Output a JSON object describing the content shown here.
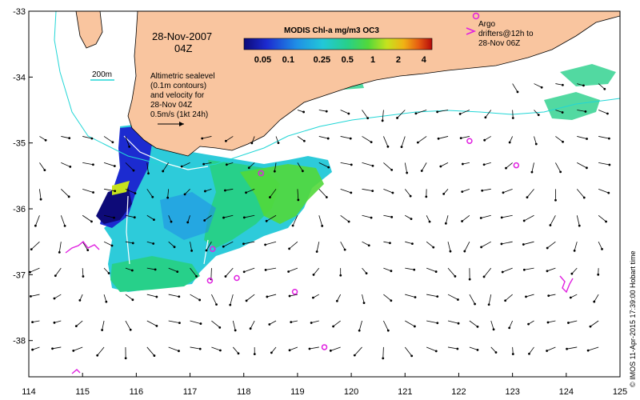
{
  "map": {
    "date_label": "28-Nov-2007",
    "time_label": "04Z",
    "colorbar_title": "MODIS Chl-a mg/m3 OC3",
    "colorbar_ticks": [
      "0.05",
      "0.1",
      "0.25",
      "0.5",
      "1",
      "2",
      "4"
    ],
    "colorbar_tick_values": [
      0.05,
      0.1,
      0.25,
      0.5,
      1,
      2,
      4
    ],
    "colorbar_range": [
      0.03,
      5
    ],
    "colorbar_colors": [
      "#0d0a78",
      "#1c2bd0",
      "#1f8fe6",
      "#22c8d8",
      "#27d08a",
      "#52d83a",
      "#c6e21e",
      "#f0b214",
      "#e65a12",
      "#b40a0a"
    ],
    "isobath_label": "200m",
    "altimetry_note": [
      "Altimetric sealevel",
      "(0.1m contours)",
      "and velocity for",
      "28-Nov 04Z",
      "0.5m/s (1kt 24h)"
    ],
    "argo_legend": [
      "Argo",
      "drifters@12h to",
      "28-Nov 06Z"
    ],
    "credit": "© IMOS 11-Apr-2015 17:39:00 Hobart time",
    "lon_ticks": [
      "114",
      "115",
      "116",
      "117",
      "118",
      "119",
      "120",
      "121",
      "122",
      "123",
      "124",
      "125"
    ],
    "lat_ticks": [
      "-33",
      "-34",
      "-35",
      "-36",
      "-37",
      "-38"
    ],
    "lon_range": [
      114,
      125
    ],
    "lat_range": [
      -38.55,
      -33
    ],
    "colors": {
      "land": "#f9c59f",
      "coastline": "#000000",
      "isobath": "#22d6d6",
      "argo": "#e020e0",
      "vectors": "#000000",
      "sealevel_contour": "#ffffff"
    },
    "argo_floats": [
      {
        "lon": 118.32,
        "lat": -35.46
      },
      {
        "lon": 117.42,
        "lat": -36.61
      },
      {
        "lon": 117.87,
        "lat": -37.05
      },
      {
        "lon": 117.37,
        "lat": -37.09
      },
      {
        "lon": 118.95,
        "lat": -37.26
      },
      {
        "lon": 119.5,
        "lat": -38.1
      },
      {
        "lon": 122.2,
        "lat": -34.97
      },
      {
        "lon": 123.07,
        "lat": -35.34
      }
    ]
  }
}
